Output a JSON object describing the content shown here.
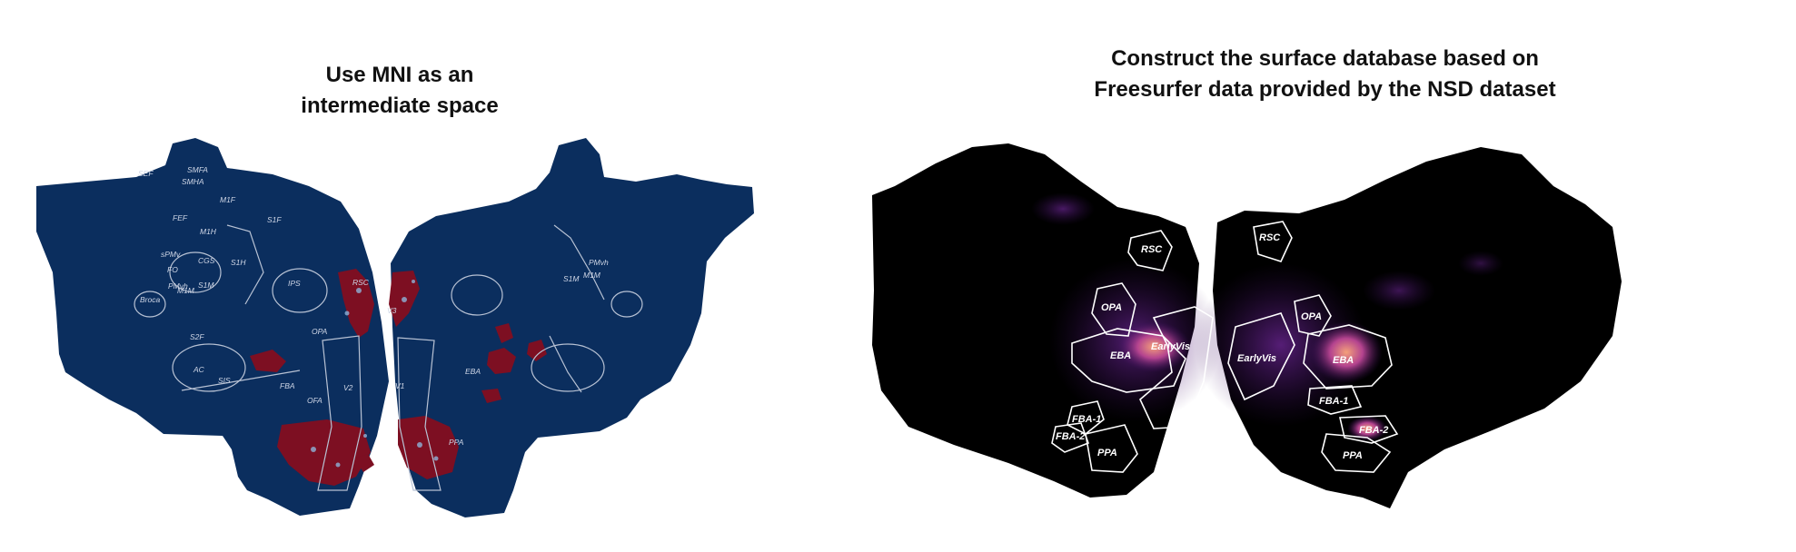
{
  "left_panel": {
    "title_lines": [
      "Use MNI as an",
      "intermediate space"
    ],
    "colors": {
      "background": "#0b2e5e",
      "activation": "#7d0f22",
      "highlight": "#8fb3d9",
      "outline": "#b8c2d4"
    },
    "roi_labels": [
      "SEF",
      "SMFA",
      "SMHA",
      "FEF",
      "M1F",
      "S1F",
      "M1H",
      "sPMv",
      "FO",
      "CGS",
      "S1H",
      "PMvh",
      "M1M",
      "S1M",
      "Broca",
      "IPS",
      "RSC",
      "OPA",
      "S2F",
      "AC",
      "SIS",
      "FBA",
      "OFA",
      "V2",
      "V3",
      "V1",
      "EBA",
      "PPA",
      "PMvh",
      "M1M",
      "S1M"
    ]
  },
  "right_panel": {
    "title_lines": [
      "Construct the surface database based on",
      "Freesurfer data provided by the NSD dataset"
    ],
    "colors": {
      "background": "#000000",
      "activation_low": "#3a0f5c",
      "activation_mid": "#7a2aa8",
      "activation_high": "#f4a07a",
      "outline": "#ffffff"
    },
    "roi_labels": [
      "RSC",
      "OPA",
      "EBA",
      "EarlyVis",
      "FBA-1",
      "FBA-2",
      "PPA",
      "RSC",
      "OPA",
      "EarlyVis",
      "EBA",
      "FBA-1",
      "FBA-2",
      "PPA"
    ]
  }
}
